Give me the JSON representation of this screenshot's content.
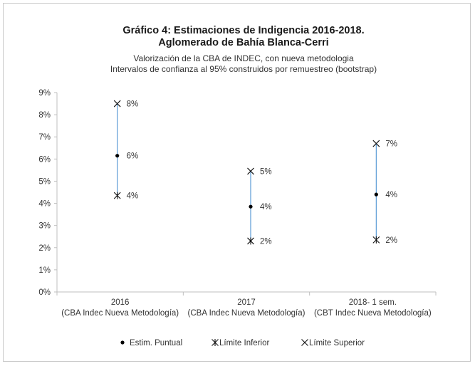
{
  "chart_data": {
    "type": "scatter",
    "title": "Gráfico 4: Estimaciones de Indigencia 2016-2018.",
    "title_line2": "Aglomerado de Bahía Blanca-Cerri",
    "subtitle": "Valorización de la CBA de INDEC, con nueva metodologia",
    "subtitle_line2": "Intervalos de confianza al 95% construidos por remuestreo (bootstrap)",
    "categories": [
      {
        "line1": "2016",
        "line2": "(CBA Indec Nueva Metodología)"
      },
      {
        "line1": "2017",
        "line2": "(CBA Indec Nueva Metodología)"
      },
      {
        "line1": "2018- 1 sem.",
        "line2": "(CBT Indec Nueva Metodología)"
      }
    ],
    "series": [
      {
        "name": "Estim. Puntual",
        "values": [
          6.15,
          3.85,
          4.4
        ],
        "labels": [
          "6%",
          "4%",
          "4%"
        ]
      },
      {
        "name": "Límite Inferior",
        "values": [
          4.35,
          2.3,
          2.35
        ],
        "labels": [
          "4%",
          "2%",
          "2%"
        ]
      },
      {
        "name": "Límite Superior",
        "values": [
          8.5,
          5.45,
          6.7
        ],
        "labels": [
          "8%",
          "5%",
          "7%"
        ]
      }
    ],
    "ylim": [
      0,
      9
    ],
    "yticks": [
      "0%",
      "1%",
      "2%",
      "3%",
      "4%",
      "5%",
      "6%",
      "7%",
      "8%",
      "9%"
    ],
    "grid": false,
    "legend_position": "bottom",
    "colors": {
      "interval_line": "#5b9bd5",
      "marker": "#000000",
      "axis": "#bfbfbf"
    }
  }
}
